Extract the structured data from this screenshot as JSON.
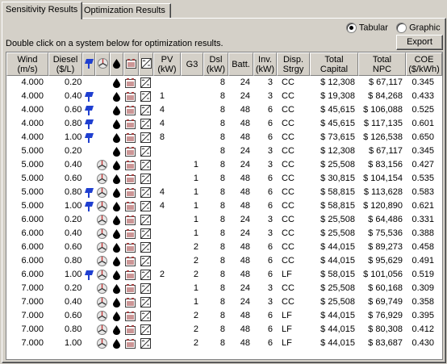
{
  "tabs": [
    {
      "label": "Sensitivity Results",
      "active": true
    },
    {
      "label": "Optimization Results",
      "active": false
    }
  ],
  "view_options": {
    "tabular_label": "Tabular",
    "graphic_label": "Graphic",
    "selected": "Tabular"
  },
  "export_label": "Export",
  "instruction": "Double click on a system below for optimization results.",
  "columns": [
    {
      "key": "wind",
      "label": "Wind",
      "unit": "(m/s)"
    },
    {
      "key": "diesel",
      "label": "Diesel",
      "unit": "($/L)"
    },
    {
      "key": "icon_pv",
      "icon": "pv-panel-icon"
    },
    {
      "key": "icon_wind",
      "icon": "wind-turbine-icon"
    },
    {
      "key": "icon_fuel",
      "icon": "fuel-drop-icon"
    },
    {
      "key": "icon_batt",
      "icon": "battery-icon"
    },
    {
      "key": "icon_conv",
      "icon": "converter-icon"
    },
    {
      "key": "pv",
      "label": "PV",
      "unit": "(kW)"
    },
    {
      "key": "g3",
      "label": "G3",
      "unit": ""
    },
    {
      "key": "dsl",
      "label": "Dsl",
      "unit": "(kW)"
    },
    {
      "key": "batt",
      "label": "Batt.",
      "unit": ""
    },
    {
      "key": "inv",
      "label": "Inv.",
      "unit": "(kW)"
    },
    {
      "key": "disp",
      "label": "Disp.",
      "unit": "Strgy"
    },
    {
      "key": "capital",
      "label": "Total",
      "unit": "Capital"
    },
    {
      "key": "npc",
      "label": "Total",
      "unit": "NPC"
    },
    {
      "key": "coe",
      "label": "COE",
      "unit": "($/kWh)"
    }
  ],
  "rows": [
    {
      "wind": "4.000",
      "diesel": "0.20",
      "pv_icon": false,
      "wind_icon": false,
      "pv": "",
      "g3": "",
      "dsl": "8",
      "batt": "24",
      "inv": "3",
      "disp": "CC",
      "capital": "$ 12,308",
      "npc": "$ 67,117",
      "coe": "0.345"
    },
    {
      "wind": "4.000",
      "diesel": "0.40",
      "pv_icon": true,
      "wind_icon": false,
      "pv": "1",
      "g3": "",
      "dsl": "8",
      "batt": "24",
      "inv": "3",
      "disp": "CC",
      "capital": "$ 19,308",
      "npc": "$ 84,268",
      "coe": "0.433"
    },
    {
      "wind": "4.000",
      "diesel": "0.60",
      "pv_icon": true,
      "wind_icon": false,
      "pv": "4",
      "g3": "",
      "dsl": "8",
      "batt": "48",
      "inv": "6",
      "disp": "CC",
      "capital": "$ 45,615",
      "npc": "$ 106,088",
      "coe": "0.525"
    },
    {
      "wind": "4.000",
      "diesel": "0.80",
      "pv_icon": true,
      "wind_icon": false,
      "pv": "4",
      "g3": "",
      "dsl": "8",
      "batt": "48",
      "inv": "6",
      "disp": "CC",
      "capital": "$ 45,615",
      "npc": "$ 117,135",
      "coe": "0.601"
    },
    {
      "wind": "4.000",
      "diesel": "1.00",
      "pv_icon": true,
      "wind_icon": false,
      "pv": "8",
      "g3": "",
      "dsl": "8",
      "batt": "48",
      "inv": "6",
      "disp": "CC",
      "capital": "$ 73,615",
      "npc": "$ 126,538",
      "coe": "0.650"
    },
    {
      "wind": "5.000",
      "diesel": "0.20",
      "pv_icon": false,
      "wind_icon": false,
      "pv": "",
      "g3": "",
      "dsl": "8",
      "batt": "24",
      "inv": "3",
      "disp": "CC",
      "capital": "$ 12,308",
      "npc": "$ 67,117",
      "coe": "0.345"
    },
    {
      "wind": "5.000",
      "diesel": "0.40",
      "pv_icon": false,
      "wind_icon": true,
      "pv": "",
      "g3": "1",
      "dsl": "8",
      "batt": "24",
      "inv": "3",
      "disp": "CC",
      "capital": "$ 25,508",
      "npc": "$ 83,156",
      "coe": "0.427"
    },
    {
      "wind": "5.000",
      "diesel": "0.60",
      "pv_icon": false,
      "wind_icon": true,
      "pv": "",
      "g3": "1",
      "dsl": "8",
      "batt": "48",
      "inv": "6",
      "disp": "CC",
      "capital": "$ 30,815",
      "npc": "$ 104,154",
      "coe": "0.535"
    },
    {
      "wind": "5.000",
      "diesel": "0.80",
      "pv_icon": true,
      "wind_icon": true,
      "pv": "4",
      "g3": "1",
      "dsl": "8",
      "batt": "48",
      "inv": "6",
      "disp": "CC",
      "capital": "$ 58,815",
      "npc": "$ 113,628",
      "coe": "0.583"
    },
    {
      "wind": "5.000",
      "diesel": "1.00",
      "pv_icon": true,
      "wind_icon": true,
      "pv": "4",
      "g3": "1",
      "dsl": "8",
      "batt": "48",
      "inv": "6",
      "disp": "CC",
      "capital": "$ 58,815",
      "npc": "$ 120,890",
      "coe": "0.621"
    },
    {
      "wind": "6.000",
      "diesel": "0.20",
      "pv_icon": false,
      "wind_icon": true,
      "pv": "",
      "g3": "1",
      "dsl": "8",
      "batt": "24",
      "inv": "3",
      "disp": "CC",
      "capital": "$ 25,508",
      "npc": "$ 64,486",
      "coe": "0.331"
    },
    {
      "wind": "6.000",
      "diesel": "0.40",
      "pv_icon": false,
      "wind_icon": true,
      "pv": "",
      "g3": "1",
      "dsl": "8",
      "batt": "24",
      "inv": "3",
      "disp": "CC",
      "capital": "$ 25,508",
      "npc": "$ 75,536",
      "coe": "0.388"
    },
    {
      "wind": "6.000",
      "diesel": "0.60",
      "pv_icon": false,
      "wind_icon": true,
      "pv": "",
      "g3": "2",
      "dsl": "8",
      "batt": "48",
      "inv": "6",
      "disp": "CC",
      "capital": "$ 44,015",
      "npc": "$ 89,273",
      "coe": "0.458"
    },
    {
      "wind": "6.000",
      "diesel": "0.80",
      "pv_icon": false,
      "wind_icon": true,
      "pv": "",
      "g3": "2",
      "dsl": "8",
      "batt": "48",
      "inv": "6",
      "disp": "CC",
      "capital": "$ 44,015",
      "npc": "$ 95,629",
      "coe": "0.491"
    },
    {
      "wind": "6.000",
      "diesel": "1.00",
      "pv_icon": true,
      "wind_icon": true,
      "pv": "2",
      "g3": "2",
      "dsl": "8",
      "batt": "48",
      "inv": "6",
      "disp": "LF",
      "capital": "$ 58,015",
      "npc": "$ 101,056",
      "coe": "0.519"
    },
    {
      "wind": "7.000",
      "diesel": "0.20",
      "pv_icon": false,
      "wind_icon": true,
      "pv": "",
      "g3": "1",
      "dsl": "8",
      "batt": "24",
      "inv": "3",
      "disp": "CC",
      "capital": "$ 25,508",
      "npc": "$ 60,168",
      "coe": "0.309"
    },
    {
      "wind": "7.000",
      "diesel": "0.40",
      "pv_icon": false,
      "wind_icon": true,
      "pv": "",
      "g3": "1",
      "dsl": "8",
      "batt": "24",
      "inv": "3",
      "disp": "CC",
      "capital": "$ 25,508",
      "npc": "$ 69,749",
      "coe": "0.358"
    },
    {
      "wind": "7.000",
      "diesel": "0.60",
      "pv_icon": false,
      "wind_icon": true,
      "pv": "",
      "g3": "2",
      "dsl": "8",
      "batt": "48",
      "inv": "6",
      "disp": "LF",
      "capital": "$ 44,015",
      "npc": "$ 76,929",
      "coe": "0.395"
    },
    {
      "wind": "7.000",
      "diesel": "0.80",
      "pv_icon": false,
      "wind_icon": true,
      "pv": "",
      "g3": "2",
      "dsl": "8",
      "batt": "48",
      "inv": "6",
      "disp": "LF",
      "capital": "$ 44,015",
      "npc": "$ 80,308",
      "coe": "0.412"
    },
    {
      "wind": "7.000",
      "diesel": "1.00",
      "pv_icon": false,
      "wind_icon": true,
      "pv": "",
      "g3": "2",
      "dsl": "8",
      "batt": "48",
      "inv": "6",
      "disp": "LF",
      "capital": "$ 44,015",
      "npc": "$ 83,687",
      "coe": "0.430"
    }
  ],
  "colors": {
    "pv_blue": "#1f3fd0",
    "fuel_black": "#000000",
    "battery": "#a04040",
    "window_bg": "#d4d0c8"
  }
}
